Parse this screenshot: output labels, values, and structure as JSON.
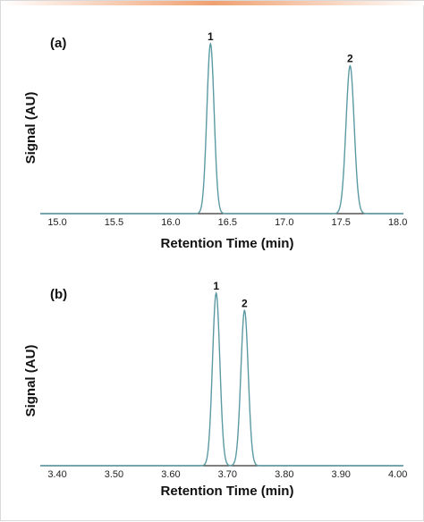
{
  "colors": {
    "trace": "#5b9aa3",
    "axis": "#333333",
    "top_bar_edge": "#ffffff",
    "top_bar_center": "#f0a070"
  },
  "chart_data": [
    {
      "type": "line",
      "panel_label": "(a)",
      "xlabel": "Retention Time (min)",
      "ylabel": "Signal (AU)",
      "xlim": [
        14.85,
        18.05
      ],
      "ylim": [
        0,
        1.0
      ],
      "ticks": [
        "15.0",
        "15.5",
        "16.0",
        "16.5",
        "17.0",
        "17.5",
        "18.0"
      ],
      "grid": false,
      "peaks": [
        {
          "label": "1",
          "retention_time": 16.35,
          "height": 1.0,
          "width": 0.032
        },
        {
          "label": "2",
          "retention_time": 17.58,
          "height": 0.87,
          "width": 0.036
        }
      ]
    },
    {
      "type": "line",
      "panel_label": "(b)",
      "xlabel": "Retention Time (min)",
      "ylabel": "Signal (AU)",
      "xlim": [
        3.37,
        4.01
      ],
      "ylim": [
        0,
        1.0
      ],
      "ticks": [
        "3.40",
        "3.50",
        "3.60",
        "3.70",
        "3.80",
        "3.90",
        "4.00"
      ],
      "grid": false,
      "peaks": [
        {
          "label": "1",
          "retention_time": 3.68,
          "height": 1.0,
          "width": 0.0065
        },
        {
          "label": "2",
          "retention_time": 3.73,
          "height": 0.9,
          "width": 0.0065
        }
      ]
    }
  ]
}
